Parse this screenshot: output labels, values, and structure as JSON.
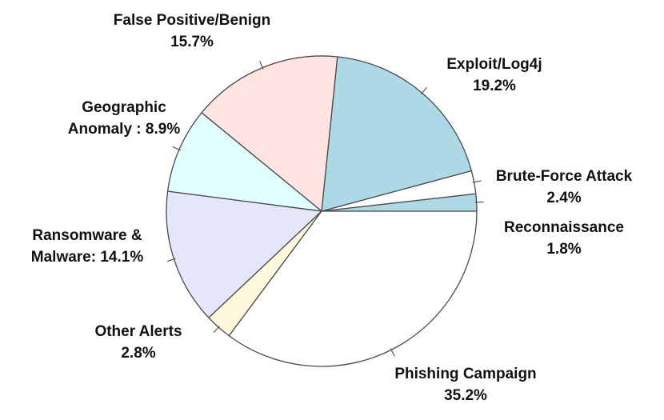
{
  "chart_data": {
    "type": "pie",
    "title": "",
    "start_angle_deg": 0,
    "direction": "counterclockwise",
    "slices": [
      {
        "name": "Reconnaissance",
        "value": 1.8,
        "display": "1.8%",
        "color": "#add8e6",
        "label_lines": [
          "Reconnaissance",
          "1.8%"
        ]
      },
      {
        "name": "Brute-Force Attack",
        "value": 2.4,
        "display": "2.4%",
        "color": "#ffffff",
        "label_lines": [
          "Brute-Force Attack",
          "2.4%"
        ]
      },
      {
        "name": "Exploit/Log4j",
        "value": 19.2,
        "display": "19.2%",
        "color": "#add8e6",
        "label_lines": [
          "Exploit/Log4j",
          "19.2%"
        ]
      },
      {
        "name": "False Positive/Benign",
        "value": 15.7,
        "display": "15.7%",
        "color": "#ffe4e1",
        "label_lines": [
          "False Positive/Benign",
          "15.7%"
        ]
      },
      {
        "name": "Geographic Anomaly",
        "value": 8.9,
        "display": "8.9%",
        "color": "#e0ffff",
        "label_lines": [
          "Geographic",
          "Anomaly : 8.9%"
        ]
      },
      {
        "name": "Ransomware & Malware",
        "value": 14.1,
        "display": "14.1%",
        "color": "#e6e6fa",
        "label_lines": [
          "Ransomware &",
          "Malware: 14.1%"
        ]
      },
      {
        "name": "Other Alerts",
        "value": 2.8,
        "display": "2.8%",
        "color": "#fff8dc",
        "label_lines": [
          "Other Alerts",
          "2.8%"
        ]
      },
      {
        "name": "Phishing Campaign",
        "value": 35.2,
        "display": "35.2%",
        "color": "#ffffff",
        "label_lines": [
          "Phishing Campaign",
          "35.2%"
        ]
      }
    ]
  }
}
